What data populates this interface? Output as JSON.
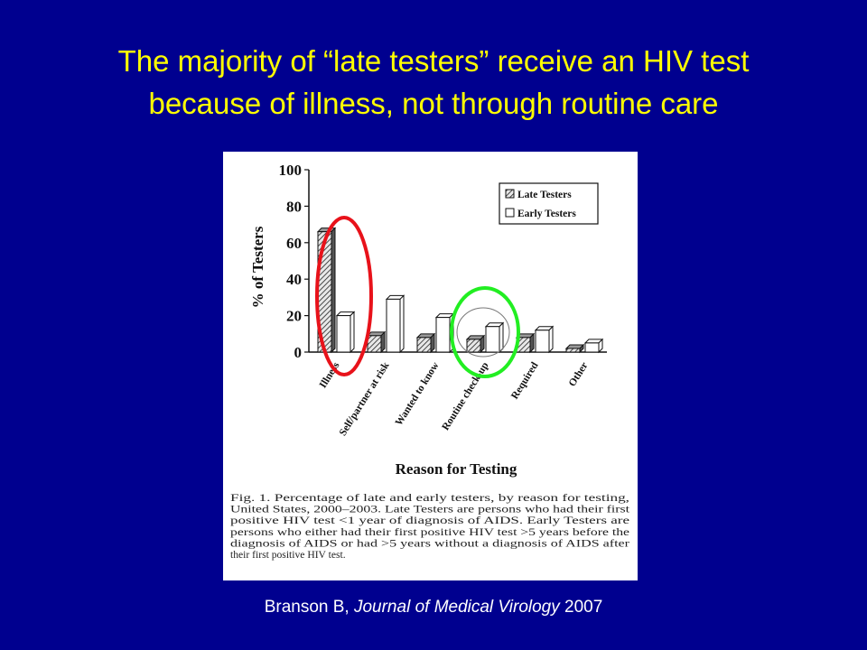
{
  "slide": {
    "title_line1": "The majority of “late testers” receive an HIV test",
    "title_line2": "because of illness, not through routine care",
    "citation_author": "Branson B, ",
    "citation_journal": "Journal of Medical Virology",
    "citation_year": " 2007",
    "highlight_colors": {
      "illness": "#e8121a",
      "routine": "#22ee22"
    }
  },
  "chart_data": {
    "type": "bar",
    "xlabel": "Reason for Testing",
    "ylabel": "% of Testers",
    "ylim": [
      0,
      100
    ],
    "yticks": [
      0,
      20,
      40,
      60,
      80,
      100
    ],
    "categories": [
      "Illness",
      "Self/partner at risk",
      "Wanted to know",
      "Routine check-up",
      "Required",
      "Other"
    ],
    "series": [
      {
        "name": "Late Testers",
        "values": [
          66,
          9,
          8,
          7,
          8,
          2
        ]
      },
      {
        "name": "Early Testers",
        "values": [
          20,
          29,
          19,
          14,
          12,
          5
        ]
      }
    ],
    "legend": "top-right",
    "grid": false
  },
  "caption": {
    "lines": [
      "Fig. 1. Percentage of late and early testers, by reason for testing,",
      "United States, 2000–2003. Late Testers are persons who had their first",
      "positive HIV test <1 year of diagnosis of AIDS. Early Testers are",
      "persons who either had their first positive HIV test >5 years before the",
      "diagnosis of AIDS or had >5 years without a diagnosis of AIDS after",
      "their first positive HIV test."
    ]
  }
}
